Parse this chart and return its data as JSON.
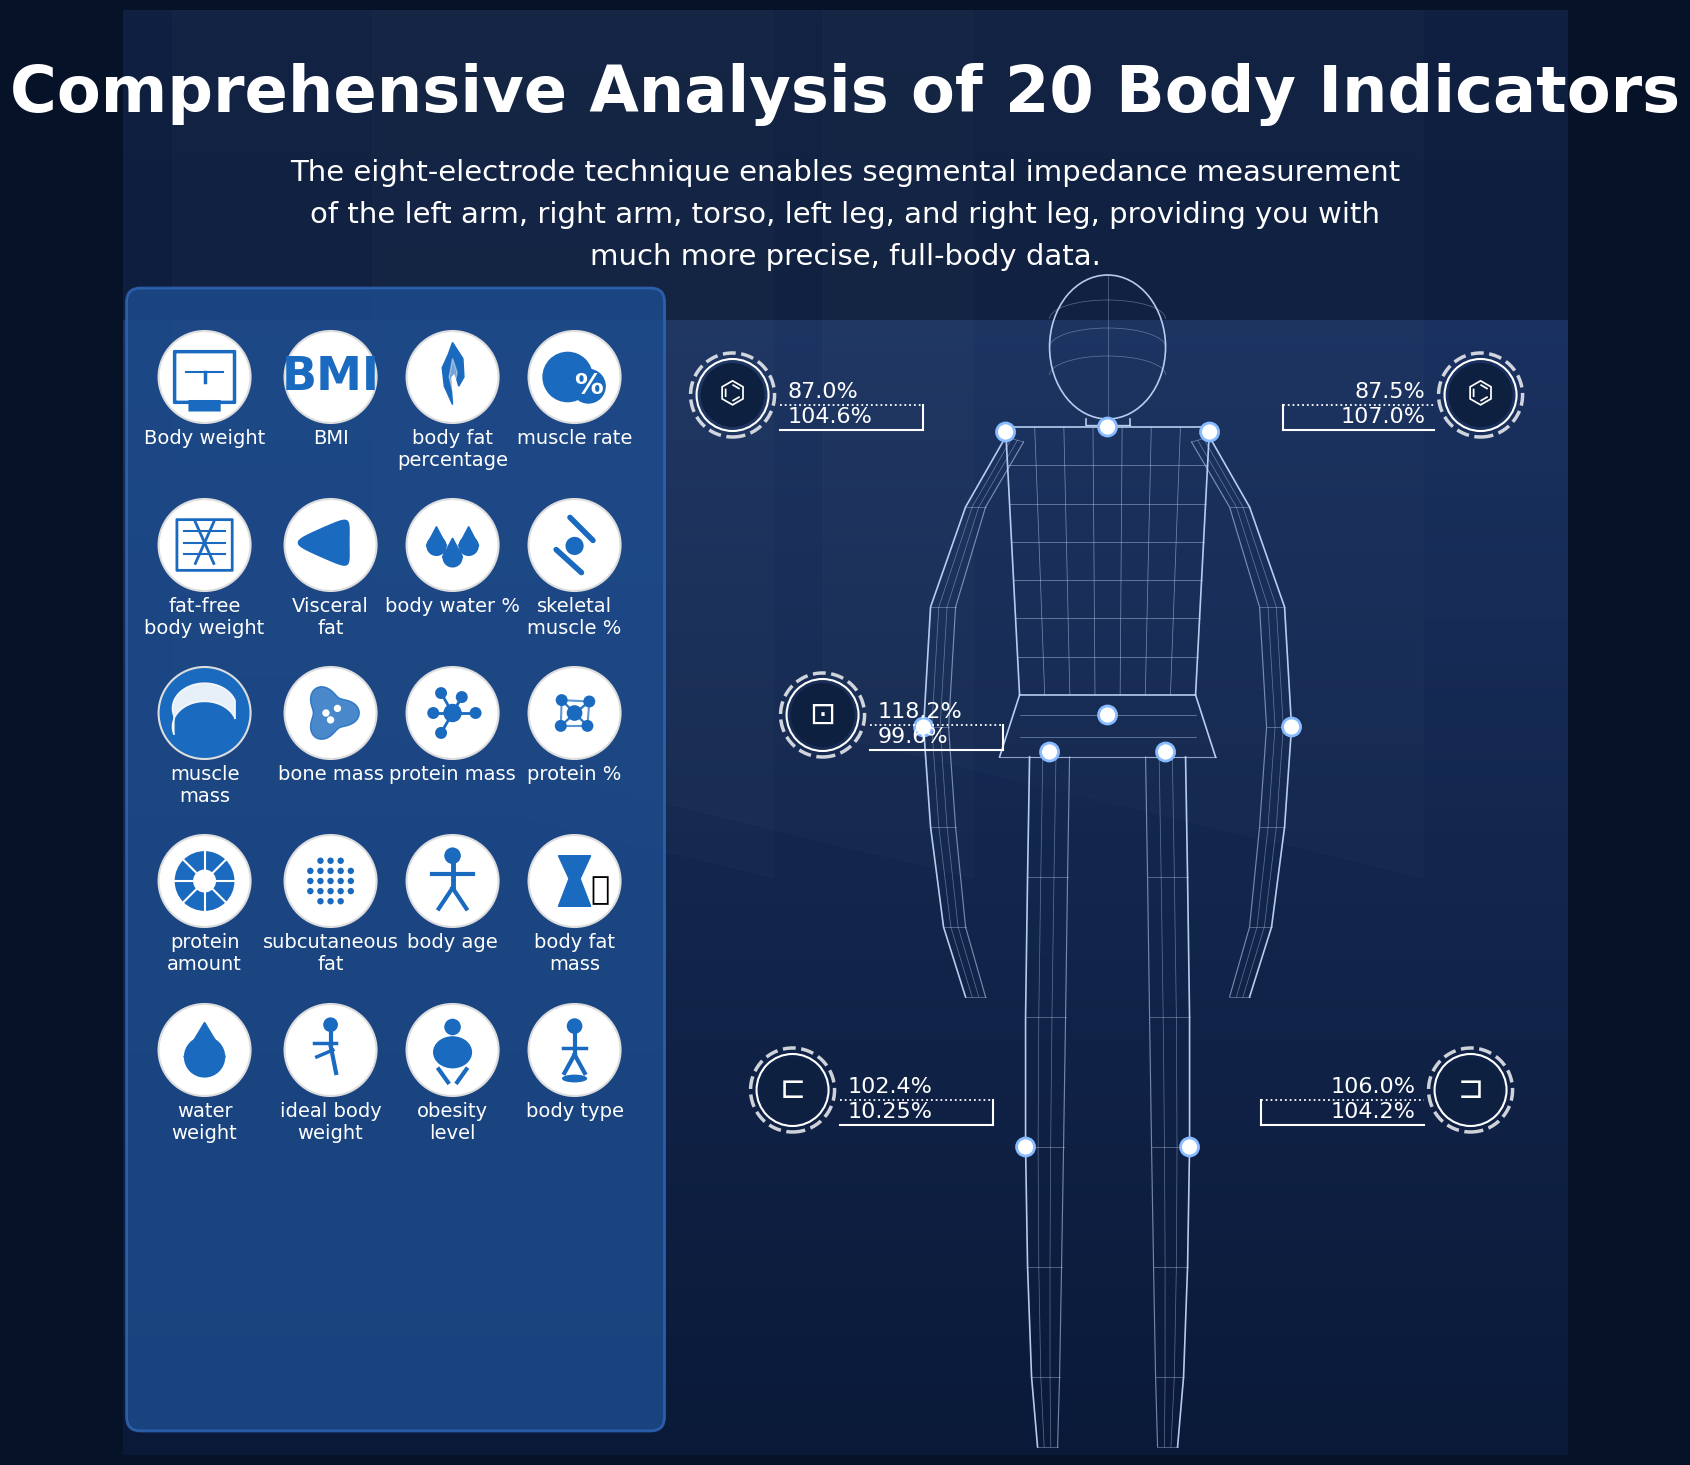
{
  "title": "Comprehensive Analysis of 20 Body Indicators",
  "subtitle": "The eight-electrode technique enables segmental impedance measurement\nof the left arm, right arm, torso, left leg, and right leg, providing you with\nmuch more precise, full-body data.",
  "bg_dark": "#061228",
  "bg_mid": "#0b1e3d",
  "bg_gym": "#0d2248",
  "panel_color": "#1e4e8c",
  "panel_edge": "#2a65b5",
  "icon_circle_bg": "#ffffff",
  "icon_fg": "#1a6abf",
  "text_white": "#ffffff",
  "wireframe_color": "#c8deff",
  "wireframe_alpha": 0.9,
  "segment_ring_color": "#ffffff",
  "segment_fill": "#0d2555",
  "icon_labels": [
    [
      "Body weight",
      "BMI",
      "body fat\npercentage",
      "muscle rate"
    ],
    [
      "fat-free\nbody weight",
      "Visceral\nfat",
      "body water %",
      "skeletal\nmuscle %"
    ],
    [
      "muscle\nmass",
      "bone mass",
      "protein mass",
      "protein %"
    ],
    [
      "protein\namount",
      "subcutaneous\nfat",
      "body age",
      "body fat\nmass"
    ],
    [
      "water\nweight",
      "ideal body\nweight",
      "obesity\nlevel",
      "body type"
    ]
  ],
  "left_arm_val1": "87.0%",
  "left_arm_val2": "104.6%",
  "right_arm_val1": "87.5%",
  "right_arm_val2": "107.0%",
  "torso_val1": "118.2%",
  "torso_val2": "99.6%",
  "left_leg_val1": "102.4%",
  "left_leg_val2": "10.25%",
  "right_leg_val1": "106.0%",
  "right_leg_val2": "104.2%",
  "title_fontsize": 46,
  "subtitle_fontsize": 21,
  "val_fontsize": 16,
  "label_fontsize": 14
}
